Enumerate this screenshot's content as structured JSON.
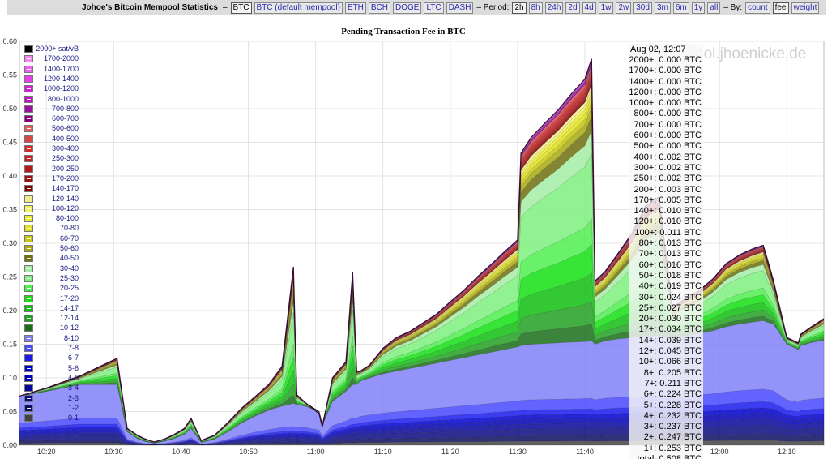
{
  "header": {
    "title": "Johoe's Bitcoin Mempool Statistics",
    "dash1": "–",
    "coins": [
      "BTC",
      "BTC (default mempool)",
      "ETH",
      "BCH",
      "DOGE",
      "LTC",
      "DASH"
    ],
    "period_label": "– Period:",
    "periods": [
      "2h",
      "8h",
      "24h",
      "2d",
      "4d",
      "1w",
      "2w",
      "30d",
      "3m",
      "6m",
      "1y",
      "all"
    ],
    "by_label": "– By:",
    "by": [
      "count",
      "fee",
      "weight"
    ],
    "selected_coin": "BTC",
    "selected_period": "2h",
    "selected_by": "fee"
  },
  "watermark": "ool.jhoenicke.de",
  "colors": {
    "background": "#ffffff",
    "topbar": "#dcdcdc",
    "grid": "#e4e4e4",
    "link": "#2a2ab0"
  },
  "tooltip": {
    "date": "Aug 02, 12:07",
    "rows": [
      "2000+: 0.000 BTC",
      "1700+: 0.000 BTC",
      "1400+: 0.000 BTC",
      "1200+: 0.000 BTC",
      "1000+: 0.000 BTC",
      "800+: 0.000 BTC",
      "700+: 0.000 BTC",
      "600+: 0.000 BTC",
      "500+: 0.000 BTC",
      "400+: 0.002 BTC",
      "300+: 0.002 BTC",
      "250+: 0.002 BTC",
      "200+: 0.003 BTC",
      "170+: 0.005 BTC",
      "140+: 0.010 BTC",
      "120+: 0.010 BTC",
      "100+: 0.011 BTC",
      "80+: 0.013 BTC",
      "70+: 0.013 BTC",
      "60+: 0.016 BTC",
      "50+: 0.018 BTC",
      "40+: 0.019 BTC",
      "30+: 0.024 BTC",
      "25+: 0.027 BTC",
      "20+: 0.030 BTC",
      "17+: 0.034 BTC",
      "14+: 0.039 BTC",
      "12+: 0.045 BTC",
      "10+: 0.066 BTC",
      "8+: 0.205 BTC",
      "7+: 0.211 BTC",
      "6+: 0.224 BTC",
      "5+: 0.228 BTC",
      "4+: 0.232 BTC",
      "3+: 0.237 BTC",
      "2+: 0.247 BTC",
      "1+: 0.253 BTC",
      "total: 0.508 BTC"
    ]
  },
  "chart_data": {
    "type": "area",
    "title": "Pending Transaction Fee in BTC",
    "xlabel": "",
    "ylabel": "",
    "ylim": [
      0,
      0.6
    ],
    "yticks": [
      "0.00",
      "0.05",
      "0.10",
      "0.15",
      "0.20",
      "0.25",
      "0.30",
      "0.35",
      "0.40",
      "0.45",
      "0.50",
      "0.55",
      "0.60"
    ],
    "xticks": [
      "10:20",
      "10:30",
      "10:40",
      "10:50",
      "11:00",
      "11:10",
      "11:20",
      "11:30",
      "11:40",
      "12:00",
      "12:10"
    ],
    "xtick_minutes": [
      0,
      10,
      20,
      30,
      40,
      50,
      60,
      70,
      80,
      100,
      110
    ],
    "xlim_minutes": [
      -4,
      115.5
    ],
    "grid": true,
    "legend_position": "top-left",
    "stacked": true,
    "series_names": [
      "0-1",
      "1-2",
      "2-3",
      "3-4",
      "4-5",
      "5-6",
      "6-7",
      "7-8",
      "8-10",
      "10-12",
      "12-14",
      "14-17",
      "17-20",
      "20-25",
      "25-30",
      "30-40",
      "40-50",
      "50-60",
      "60-70",
      "70-80",
      "80-100",
      "100-120",
      "120-140",
      "140-170",
      "170-200",
      "200-250",
      "250-300",
      "300-400",
      "400-500",
      "500-600",
      "600-700",
      "700-800",
      "800-1000",
      "1000-1200",
      "1200-1400",
      "1400-1700",
      "1700-2000",
      "2000+ sat/vB"
    ],
    "series_colors": [
      "#444444",
      "#0d0d60",
      "#0a0a80",
      "#06069a",
      "#0000b4",
      "#0000d0",
      "#1a1aee",
      "#4848ff",
      "#8080f8",
      "#1a6e1a",
      "#22a022",
      "#10c010",
      "#14e014",
      "#50ee50",
      "#7ef07e",
      "#a4eca4",
      "#6e7010",
      "#a8aa10",
      "#c8c810",
      "#e0e020",
      "#eaea30",
      "#f0f060",
      "#f0f090",
      "#800000",
      "#a01010",
      "#b81818",
      "#c82020",
      "#d82828",
      "#d84848",
      "#e06060",
      "#880088",
      "#a010a0",
      "#c010c0",
      "#d820d8",
      "#e840e8",
      "#f060f0",
      "#f888f0",
      "#000000"
    ],
    "x_minutes": [
      -4,
      0,
      5,
      10.5,
      12,
      13.5,
      14.5,
      16,
      17.5,
      19,
      20.5,
      21.5,
      23,
      25,
      27,
      29,
      31,
      33,
      35,
      36.7,
      37.2,
      38.5,
      40.5,
      41,
      42.5,
      44.5,
      45.5,
      46.1,
      46.6,
      48,
      50,
      52,
      54,
      56,
      58,
      60,
      62,
      64,
      66,
      68,
      70,
      70.5,
      72,
      74,
      76,
      78,
      80,
      81,
      81.5,
      83,
      85,
      87,
      89,
      91,
      93,
      95,
      97,
      99,
      101,
      103,
      105,
      106.5,
      107,
      108,
      110,
      111.7,
      112.1,
      113.5,
      115.5
    ],
    "total_btc": [
      0.073,
      0.085,
      0.103,
      0.129,
      0.025,
      0.015,
      0.01,
      0.005,
      0.009,
      0.016,
      0.025,
      0.04,
      0.007,
      0.015,
      0.034,
      0.055,
      0.072,
      0.09,
      0.117,
      0.265,
      0.075,
      0.063,
      0.047,
      0.027,
      0.1,
      0.124,
      0.257,
      0.11,
      0.11,
      0.119,
      0.144,
      0.16,
      0.169,
      0.182,
      0.195,
      0.213,
      0.23,
      0.25,
      0.268,
      0.287,
      0.305,
      0.434,
      0.457,
      0.478,
      0.498,
      0.522,
      0.544,
      0.574,
      0.244,
      0.258,
      0.286,
      0.315,
      0.355,
      0.369,
      0.205,
      0.218,
      0.23,
      0.247,
      0.27,
      0.283,
      0.292,
      0.297,
      0.28,
      0.245,
      0.16,
      0.152,
      0.165,
      0.175,
      0.188
    ],
    "base_btc": [
      0.073,
      0.08,
      0.09,
      0.09,
      0.02,
      0.01,
      0.006,
      0.003,
      0.006,
      0.01,
      0.016,
      0.025,
      0.004,
      0.009,
      0.02,
      0.033,
      0.043,
      0.052,
      0.058,
      0.062,
      0.06,
      0.058,
      0.05,
      0.03,
      0.065,
      0.08,
      0.09,
      0.09,
      0.095,
      0.1,
      0.106,
      0.11,
      0.114,
      0.118,
      0.122,
      0.126,
      0.13,
      0.134,
      0.138,
      0.142,
      0.146,
      0.148,
      0.15,
      0.151,
      0.152,
      0.153,
      0.154,
      0.155,
      0.15,
      0.155,
      0.158,
      0.16,
      0.162,
      0.163,
      0.16,
      0.163,
      0.166,
      0.17,
      0.176,
      0.18,
      0.183,
      0.185,
      0.183,
      0.18,
      0.15,
      0.142,
      0.148,
      0.152,
      0.156
    ],
    "fill_opacity": 0.85
  },
  "legend": [
    {
      "label": "2000+ sat/vB",
      "color": "#000000"
    },
    {
      "label": "1700-2000",
      "color": "#f888f0"
    },
    {
      "label": "1400-1700",
      "color": "#f060f0"
    },
    {
      "label": "1200-1400",
      "color": "#e840e8"
    },
    {
      "label": "1000-1200",
      "color": "#d820d8"
    },
    {
      "label": "800-1000",
      "color": "#c010c0"
    },
    {
      "label": "700-800",
      "color": "#a010a0"
    },
    {
      "label": "600-700",
      "color": "#880088"
    },
    {
      "label": "500-600",
      "color": "#e06060"
    },
    {
      "label": "400-500",
      "color": "#d84848"
    },
    {
      "label": "300-400",
      "color": "#d82828"
    },
    {
      "label": "250-300",
      "color": "#c82020"
    },
    {
      "label": "200-250",
      "color": "#b81818"
    },
    {
      "label": "170-200",
      "color": "#a01010"
    },
    {
      "label": "140-170",
      "color": "#800000"
    },
    {
      "label": "120-140",
      "color": "#f0f090"
    },
    {
      "label": "100-120",
      "color": "#f0f060"
    },
    {
      "label": "80-100",
      "color": "#eaea30"
    },
    {
      "label": "70-80",
      "color": "#e0e020"
    },
    {
      "label": "60-70",
      "color": "#c8c810"
    },
    {
      "label": "50-60",
      "color": "#a8aa10"
    },
    {
      "label": "40-50",
      "color": "#6e7010"
    },
    {
      "label": "30-40",
      "color": "#a4eca4"
    },
    {
      "label": "25-30",
      "color": "#7ef07e"
    },
    {
      "label": "20-25",
      "color": "#50ee50"
    },
    {
      "label": "17-20",
      "color": "#14e014"
    },
    {
      "label": "14-17",
      "color": "#10c010"
    },
    {
      "label": "12-14",
      "color": "#22a022"
    },
    {
      "label": "10-12",
      "color": "#1a6e1a"
    },
    {
      "label": "8-10",
      "color": "#8080f8"
    },
    {
      "label": "7-8",
      "color": "#4848ff"
    },
    {
      "label": "6-7",
      "color": "#1a1aee"
    },
    {
      "label": "5-6",
      "color": "#0000d0"
    },
    {
      "label": "4-5",
      "color": "#0000b4"
    },
    {
      "label": "3-4",
      "color": "#06069a"
    },
    {
      "label": "2-3",
      "color": "#0a0a80"
    },
    {
      "label": "1-2",
      "color": "#0d0d60"
    },
    {
      "label": "0-1",
      "color": "#444444"
    }
  ]
}
